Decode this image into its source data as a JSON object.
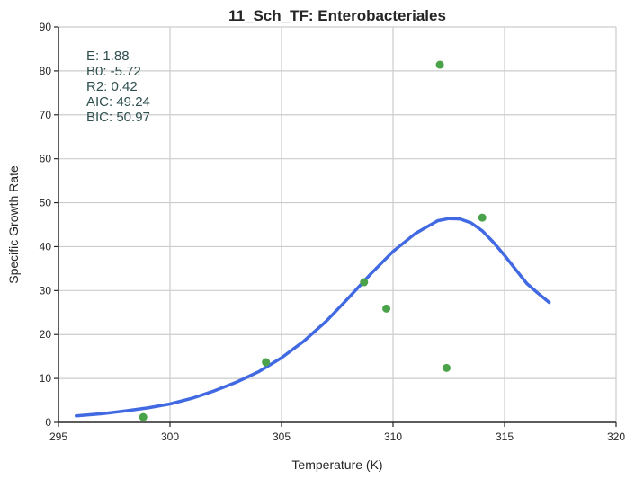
{
  "chart_data": {
    "type": "scatter",
    "title": "11_Sch_TF: Enterobacteriales",
    "xlabel": "Temperature (K)",
    "ylabel": "Specific Growth Rate",
    "xlim": [
      295,
      320
    ],
    "ylim": [
      0,
      90
    ],
    "xticks": [
      295,
      300,
      305,
      310,
      315,
      320
    ],
    "yticks": [
      0,
      10,
      20,
      30,
      40,
      50,
      60,
      70,
      80,
      90
    ],
    "grid": true,
    "colors": {
      "points": "#4aa34a",
      "fit": "#4169e1",
      "annotation": "#2f4f4f"
    },
    "annotation": [
      {
        "label": "E:",
        "value": "1.88"
      },
      {
        "label": "B0:",
        "value": "-5.72"
      },
      {
        "label": "R2:",
        "value": "0.42"
      },
      {
        "label": "AIC:",
        "value": "49.24"
      },
      {
        "label": "BIC:",
        "value": "50.97"
      }
    ],
    "points": [
      {
        "x": 298.8,
        "y": 1.2
      },
      {
        "x": 304.3,
        "y": 13.7
      },
      {
        "x": 308.7,
        "y": 31.9
      },
      {
        "x": 309.7,
        "y": 25.9
      },
      {
        "x": 312.1,
        "y": 81.4
      },
      {
        "x": 312.4,
        "y": 12.4
      },
      {
        "x": 314.0,
        "y": 46.6
      }
    ],
    "fit_line": {
      "x": [
        295.8,
        297.0,
        298.0,
        299.0,
        300.0,
        301.0,
        302.0,
        303.0,
        304.0,
        305.0,
        306.0,
        307.0,
        308.0,
        309.0,
        310.0,
        311.0,
        312.0,
        312.5,
        313.0,
        313.5,
        314.0,
        314.5,
        315.0,
        315.5,
        316.0,
        316.5,
        317.0
      ],
      "y": [
        1.5,
        2.0,
        2.6,
        3.3,
        4.2,
        5.5,
        7.2,
        9.2,
        11.6,
        14.7,
        18.5,
        23.0,
        28.3,
        33.8,
        38.9,
        43.0,
        45.9,
        46.4,
        46.3,
        45.4,
        43.6,
        41.0,
        38.0,
        34.8,
        31.6,
        29.4,
        27.3
      ]
    }
  }
}
